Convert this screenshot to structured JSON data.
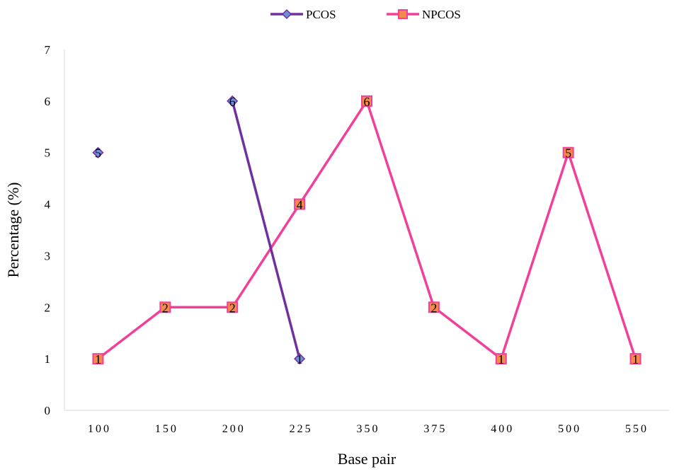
{
  "chart_data": {
    "type": "line",
    "title": "",
    "xlabel": "Base pair",
    "ylabel": "Percentage (%)",
    "categories": [
      "100",
      "150",
      "200",
      "225",
      "350",
      "375",
      "400",
      "500",
      "550"
    ],
    "ylim": [
      0,
      7
    ],
    "yticks": [
      0,
      1,
      2,
      3,
      4,
      5,
      6,
      7
    ],
    "grid": false,
    "legend_position": "top",
    "series": [
      {
        "name": "PCOS",
        "values": [
          5,
          null,
          6,
          1,
          null,
          null,
          null,
          null,
          null
        ],
        "color": "#7030a0",
        "marker": "diamond",
        "marker_color": "#6f8fd8"
      },
      {
        "name": "NPCOS",
        "values": [
          1,
          2,
          2,
          4,
          6,
          2,
          1,
          5,
          1
        ],
        "color": "#f2409a",
        "marker": "square",
        "marker_color": "#f5894a"
      }
    ]
  }
}
